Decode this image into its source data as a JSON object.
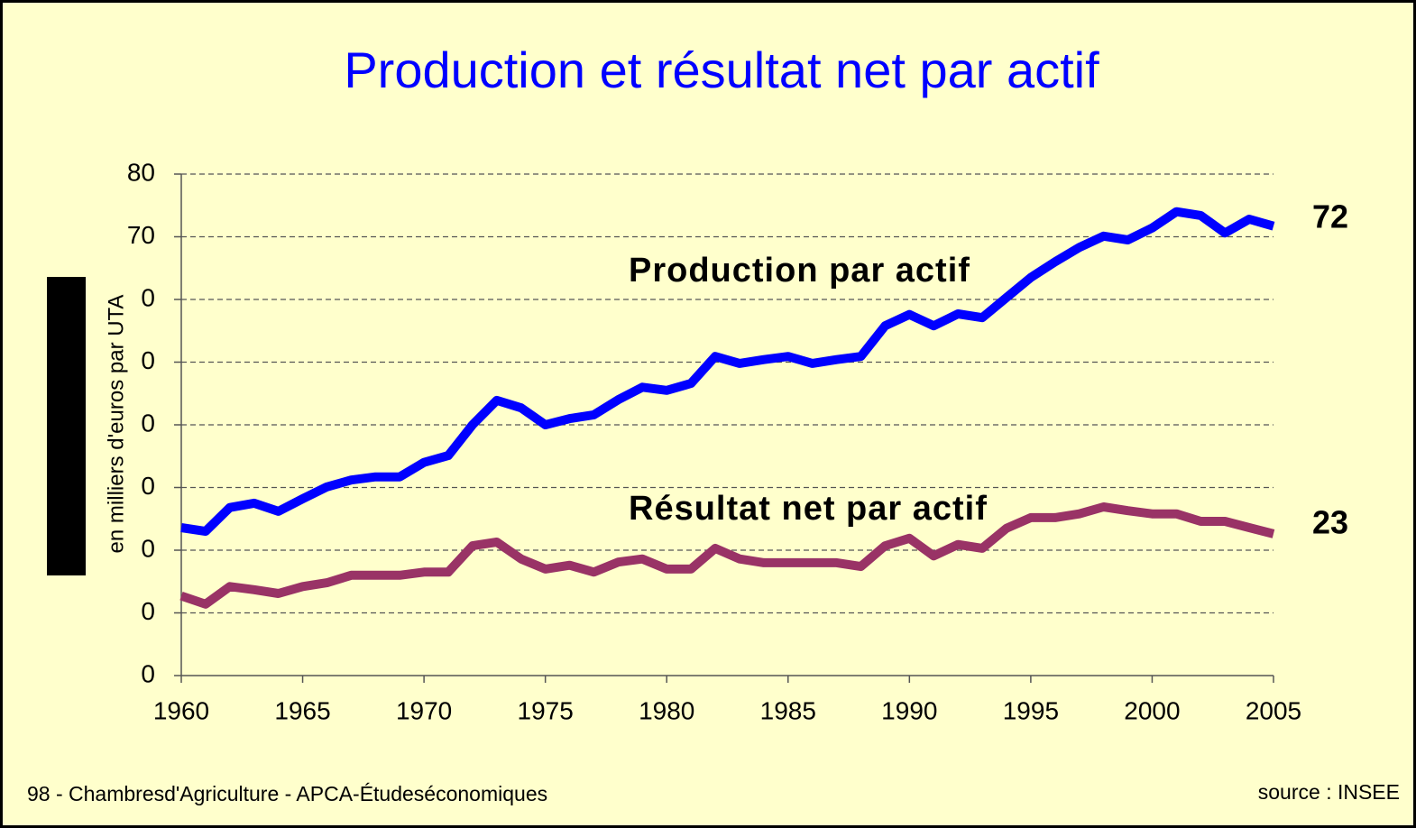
{
  "chart_data": {
    "type": "line",
    "title": "Production et résultat net par actif",
    "y_label": "en milliers d'euros par UTA",
    "footer": "98 - Chambresd'Agriculture - APCA-Étudeséconomiques",
    "source": "source : INSEE",
    "x": [
      1960,
      1961,
      1962,
      1963,
      1964,
      1965,
      1966,
      1967,
      1968,
      1969,
      1970,
      1971,
      1972,
      1973,
      1974,
      1975,
      1976,
      1977,
      1978,
      1979,
      1980,
      1981,
      1982,
      1983,
      1984,
      1985,
      1986,
      1987,
      1988,
      1989,
      1990,
      1991,
      1992,
      1993,
      1994,
      1995,
      1996,
      1997,
      1998,
      1999,
      2000,
      2001,
      2002,
      2003,
      2004,
      2005
    ],
    "xlim": [
      1960,
      2005
    ],
    "xticks": [
      1960,
      1965,
      1970,
      1975,
      1980,
      1985,
      1990,
      1995,
      2000,
      2005
    ],
    "ylim": [
      0,
      80
    ],
    "yticks": [
      {
        "value": 0,
        "label": "0"
      },
      {
        "value": 10,
        "label": "0"
      },
      {
        "value": 20,
        "label": "0"
      },
      {
        "value": 30,
        "label": "0"
      },
      {
        "value": 40,
        "label": "0"
      },
      {
        "value": 50,
        "label": "0"
      },
      {
        "value": 60,
        "label": "0"
      },
      70,
      80
    ],
    "grid": true,
    "series": [
      {
        "name": "Production par actif",
        "color": "#0000ff",
        "end_label": "72",
        "values": [
          23.6,
          23.0,
          26.8,
          27.5,
          26.2,
          28.2,
          30.1,
          31.2,
          31.7,
          31.7,
          34.0,
          35.1,
          40.0,
          43.9,
          42.7,
          40.0,
          41.0,
          41.6,
          44.0,
          46.0,
          45.5,
          46.6,
          50.9,
          49.8,
          50.4,
          50.9,
          49.8,
          50.4,
          50.9,
          55.8,
          57.6,
          55.8,
          57.7,
          57.1,
          60.3,
          63.5,
          66.0,
          68.3,
          70.1,
          69.5,
          71.4,
          74.0,
          73.4,
          70.6,
          72.8,
          71.7
        ]
      },
      {
        "name": "Résultat net par actif",
        "color": "#993366",
        "end_label": "23",
        "values": [
          12.7,
          11.4,
          14.2,
          13.7,
          13.1,
          14.2,
          14.8,
          16.0,
          16.0,
          16.0,
          16.5,
          16.5,
          20.7,
          21.3,
          18.6,
          17.0,
          17.6,
          16.5,
          18.1,
          18.6,
          17.0,
          17.0,
          20.3,
          18.6,
          18.0,
          18.0,
          18.0,
          18.0,
          17.4,
          20.7,
          21.9,
          19.1,
          20.9,
          20.3,
          23.5,
          25.2,
          25.2,
          25.8,
          26.9,
          26.3,
          25.8,
          25.8,
          24.6,
          24.6,
          23.6,
          22.6
        ]
      }
    ]
  }
}
